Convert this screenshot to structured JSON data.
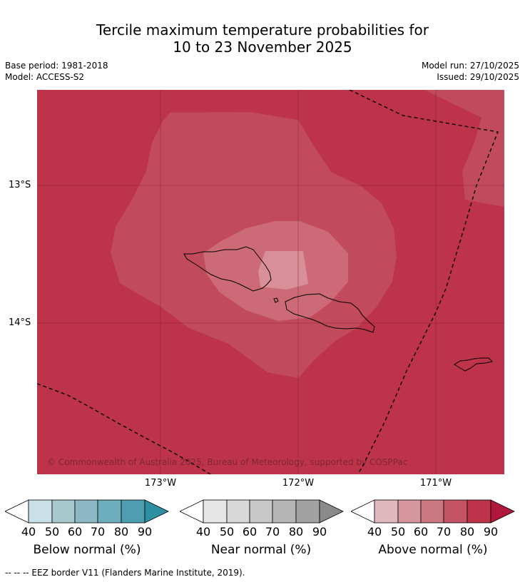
{
  "title": {
    "line1": "Tercile maximum temperature probabilities for",
    "line2": "10 to 23 November 2025"
  },
  "meta": {
    "base_period": "Base period: 1981-2018",
    "model": "Model: ACCESS-S2",
    "model_run": "Model run: 27/10/2025",
    "issued": "Issued: 29/10/2025"
  },
  "map": {
    "lat_labels": [
      "13°S",
      "14°S"
    ],
    "lon_labels": [
      "173°W",
      "172°W",
      "171°W"
    ],
    "copyright": "© Commonwealth of Australia 2025, Bureau of Meteorology, supported by COSPPac"
  },
  "colorbars": [
    {
      "label": "Below normal (%)",
      "ticks": [
        "40",
        "50",
        "60",
        "70",
        "80",
        "90"
      ],
      "colors": [
        "#ffffff",
        "#c8e0e6",
        "#a7c8cd",
        "#8bb8c3",
        "#6eadbb",
        "#4d9fb0",
        "#2f8fa2"
      ]
    },
    {
      "label": "Near normal (%)",
      "ticks": [
        "40",
        "50",
        "60",
        "70",
        "80",
        "90"
      ],
      "colors": [
        "#ffffff",
        "#e6e6e6",
        "#d8d8d8",
        "#c8c8c8",
        "#b5b5b5",
        "#a2a2a2",
        "#8a8a8a"
      ]
    },
    {
      "label": "Above normal (%)",
      "ticks": [
        "40",
        "50",
        "60",
        "70",
        "80",
        "90"
      ],
      "colors": [
        "#ffffff",
        "#e0b9be",
        "#d6969e",
        "#cc7883",
        "#c45364",
        "#bc334a",
        "#b0173c"
      ]
    }
  ],
  "footnote": "--  --  -- EEZ border V11 (Flanders Marine Institute, 2019)."
}
